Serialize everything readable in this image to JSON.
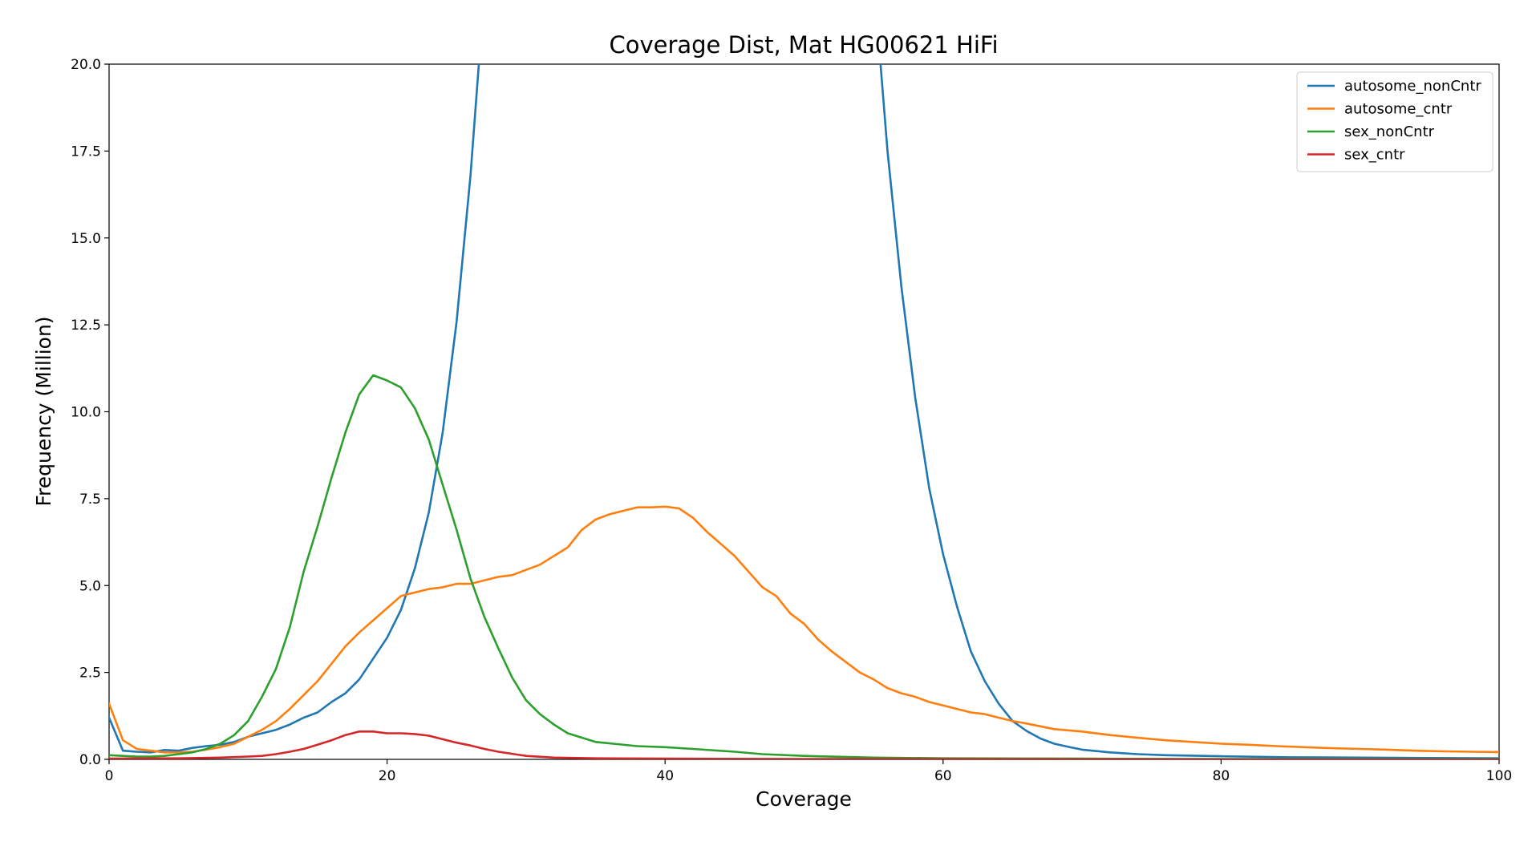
{
  "chart_data": {
    "type": "line",
    "title": "Coverage Dist, Mat HG00621 HiFi",
    "xlabel": "Coverage",
    "ylabel": "Frequency (Million)",
    "xlim": [
      0,
      100
    ],
    "ylim": [
      0,
      20
    ],
    "xticks": [
      "0",
      "20",
      "40",
      "60",
      "80",
      "100"
    ],
    "yticks": [
      "0.0",
      "2.5",
      "5.0",
      "7.5",
      "10.0",
      "12.5",
      "15.0",
      "17.5",
      "20.0"
    ],
    "grid": false,
    "legend_position": "top-right",
    "series": [
      {
        "name": "autosome_nonCntr",
        "color": "#1f77b4",
        "points": [
          [
            0,
            1.2
          ],
          [
            1,
            0.25
          ],
          [
            2,
            0.22
          ],
          [
            3,
            0.2
          ],
          [
            4,
            0.27
          ],
          [
            5,
            0.25
          ],
          [
            6,
            0.33
          ],
          [
            7,
            0.38
          ],
          [
            8,
            0.42
          ],
          [
            9,
            0.5
          ],
          [
            10,
            0.65
          ],
          [
            11,
            0.75
          ],
          [
            12,
            0.85
          ],
          [
            13,
            1.0
          ],
          [
            14,
            1.2
          ],
          [
            15,
            1.35
          ],
          [
            16,
            1.65
          ],
          [
            17,
            1.9
          ],
          [
            18,
            2.3
          ],
          [
            19,
            2.9
          ],
          [
            20,
            3.5
          ],
          [
            21,
            4.3
          ],
          [
            22,
            5.5
          ],
          [
            23,
            7.1
          ],
          [
            24,
            9.4
          ],
          [
            25,
            12.6
          ],
          [
            26,
            16.8
          ],
          [
            26.6,
            20
          ],
          [
            27,
            24
          ],
          [
            54,
            24
          ],
          [
            55.5,
            20
          ],
          [
            56,
            17.5
          ],
          [
            57,
            13.6
          ],
          [
            58,
            10.4
          ],
          [
            59,
            7.8
          ],
          [
            60,
            5.9
          ],
          [
            61,
            4.4
          ],
          [
            62,
            3.1
          ],
          [
            63,
            2.25
          ],
          [
            64,
            1.6
          ],
          [
            65,
            1.1
          ],
          [
            66,
            0.82
          ],
          [
            67,
            0.6
          ],
          [
            68,
            0.45
          ],
          [
            69,
            0.36
          ],
          [
            70,
            0.28
          ],
          [
            72,
            0.2
          ],
          [
            74,
            0.15
          ],
          [
            76,
            0.12
          ],
          [
            80,
            0.09
          ],
          [
            85,
            0.06
          ],
          [
            90,
            0.05
          ],
          [
            95,
            0.04
          ],
          [
            100,
            0.03
          ]
        ]
      },
      {
        "name": "autosome_cntr",
        "color": "#ff7f0e",
        "points": [
          [
            0,
            1.6
          ],
          [
            1,
            0.55
          ],
          [
            2,
            0.3
          ],
          [
            3,
            0.25
          ],
          [
            4,
            0.2
          ],
          [
            5,
            0.2
          ],
          [
            6,
            0.22
          ],
          [
            7,
            0.28
          ],
          [
            8,
            0.35
          ],
          [
            9,
            0.45
          ],
          [
            10,
            0.65
          ],
          [
            11,
            0.85
          ],
          [
            12,
            1.1
          ],
          [
            13,
            1.45
          ],
          [
            14,
            1.85
          ],
          [
            15,
            2.25
          ],
          [
            16,
            2.75
          ],
          [
            17,
            3.25
          ],
          [
            18,
            3.65
          ],
          [
            19,
            4.0
          ],
          [
            20,
            4.35
          ],
          [
            21,
            4.7
          ],
          [
            22,
            4.8
          ],
          [
            23,
            4.9
          ],
          [
            24,
            4.95
          ],
          [
            25,
            5.05
          ],
          [
            26,
            5.05
          ],
          [
            27,
            5.15
          ],
          [
            28,
            5.25
          ],
          [
            29,
            5.3
          ],
          [
            30,
            5.45
          ],
          [
            31,
            5.6
          ],
          [
            32,
            5.85
          ],
          [
            33,
            6.1
          ],
          [
            34,
            6.6
          ],
          [
            35,
            6.9
          ],
          [
            36,
            7.05
          ],
          [
            37,
            7.15
          ],
          [
            38,
            7.25
          ],
          [
            39,
            7.25
          ],
          [
            40,
            7.27
          ],
          [
            41,
            7.22
          ],
          [
            42,
            6.95
          ],
          [
            43,
            6.55
          ],
          [
            44,
            6.2
          ],
          [
            45,
            5.85
          ],
          [
            46,
            5.4
          ],
          [
            47,
            4.95
          ],
          [
            48,
            4.7
          ],
          [
            49,
            4.2
          ],
          [
            50,
            3.9
          ],
          [
            51,
            3.45
          ],
          [
            52,
            3.1
          ],
          [
            53,
            2.8
          ],
          [
            54,
            2.5
          ],
          [
            55,
            2.3
          ],
          [
            56,
            2.05
          ],
          [
            57,
            1.9
          ],
          [
            58,
            1.8
          ],
          [
            59,
            1.65
          ],
          [
            60,
            1.55
          ],
          [
            61,
            1.45
          ],
          [
            62,
            1.35
          ],
          [
            63,
            1.3
          ],
          [
            64,
            1.2
          ],
          [
            65,
            1.1
          ],
          [
            66,
            1.03
          ],
          [
            67,
            0.95
          ],
          [
            68,
            0.87
          ],
          [
            70,
            0.8
          ],
          [
            72,
            0.7
          ],
          [
            74,
            0.62
          ],
          [
            76,
            0.55
          ],
          [
            78,
            0.5
          ],
          [
            80,
            0.45
          ],
          [
            82,
            0.42
          ],
          [
            84,
            0.38
          ],
          [
            86,
            0.35
          ],
          [
            88,
            0.32
          ],
          [
            90,
            0.3
          ],
          [
            92,
            0.28
          ],
          [
            94,
            0.25
          ],
          [
            96,
            0.23
          ],
          [
            98,
            0.22
          ],
          [
            100,
            0.21
          ]
        ]
      },
      {
        "name": "sex_nonCntr",
        "color": "#2ca02c",
        "points": [
          [
            0,
            0.12
          ],
          [
            1,
            0.1
          ],
          [
            2,
            0.08
          ],
          [
            3,
            0.08
          ],
          [
            4,
            0.1
          ],
          [
            5,
            0.15
          ],
          [
            6,
            0.2
          ],
          [
            7,
            0.3
          ],
          [
            8,
            0.45
          ],
          [
            9,
            0.7
          ],
          [
            10,
            1.1
          ],
          [
            11,
            1.8
          ],
          [
            12,
            2.6
          ],
          [
            13,
            3.8
          ],
          [
            14,
            5.4
          ],
          [
            15,
            6.7
          ],
          [
            16,
            8.1
          ],
          [
            17,
            9.4
          ],
          [
            18,
            10.5
          ],
          [
            19,
            11.05
          ],
          [
            20,
            10.9
          ],
          [
            21,
            10.7
          ],
          [
            22,
            10.1
          ],
          [
            23,
            9.2
          ],
          [
            24,
            7.9
          ],
          [
            25,
            6.6
          ],
          [
            26,
            5.2
          ],
          [
            27,
            4.1
          ],
          [
            28,
            3.2
          ],
          [
            29,
            2.35
          ],
          [
            30,
            1.7
          ],
          [
            31,
            1.3
          ],
          [
            32,
            1.0
          ],
          [
            33,
            0.75
          ],
          [
            35,
            0.5
          ],
          [
            38,
            0.38
          ],
          [
            40,
            0.35
          ],
          [
            42,
            0.3
          ],
          [
            45,
            0.22
          ],
          [
            47,
            0.15
          ],
          [
            50,
            0.1
          ],
          [
            55,
            0.05
          ],
          [
            60,
            0.03
          ],
          [
            70,
            0.02
          ],
          [
            80,
            0.01
          ],
          [
            90,
            0.01
          ],
          [
            100,
            0.01
          ]
        ]
      },
      {
        "name": "sex_cntr",
        "color": "#d62728",
        "points": [
          [
            0,
            0.02
          ],
          [
            5,
            0.03
          ],
          [
            8,
            0.05
          ],
          [
            10,
            0.08
          ],
          [
            11,
            0.1
          ],
          [
            12,
            0.15
          ],
          [
            13,
            0.22
          ],
          [
            14,
            0.3
          ],
          [
            15,
            0.42
          ],
          [
            16,
            0.55
          ],
          [
            17,
            0.7
          ],
          [
            18,
            0.8
          ],
          [
            19,
            0.8
          ],
          [
            20,
            0.75
          ],
          [
            21,
            0.75
          ],
          [
            22,
            0.73
          ],
          [
            23,
            0.68
          ],
          [
            24,
            0.58
          ],
          [
            25,
            0.48
          ],
          [
            26,
            0.4
          ],
          [
            27,
            0.3
          ],
          [
            28,
            0.22
          ],
          [
            29,
            0.16
          ],
          [
            30,
            0.1
          ],
          [
            32,
            0.05
          ],
          [
            35,
            0.03
          ],
          [
            40,
            0.02
          ],
          [
            50,
            0.01
          ],
          [
            60,
            0.01
          ],
          [
            80,
            0.0
          ],
          [
            100,
            0.0
          ]
        ]
      }
    ]
  }
}
